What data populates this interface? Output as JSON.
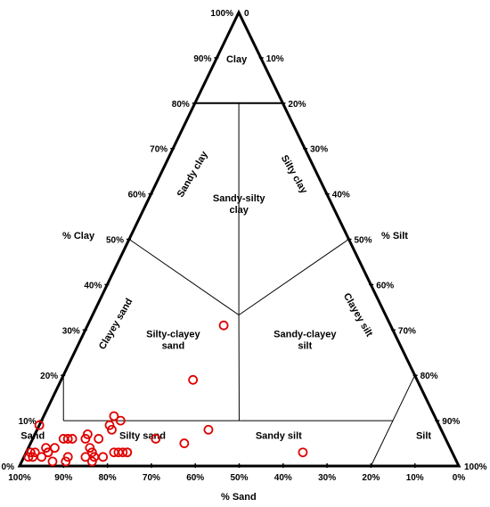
{
  "chart_data": {
    "type": "scatter",
    "subtype": "ternary",
    "axes": {
      "clay": {
        "title": "% Clay",
        "ticks": [
          {
            "v": 0,
            "label": "0%"
          },
          {
            "v": 10,
            "label": "10%"
          },
          {
            "v": 20,
            "label": "20%"
          },
          {
            "v": 30,
            "label": "30%"
          },
          {
            "v": 40,
            "label": "40%"
          },
          {
            "v": 50,
            "label": "50%"
          },
          {
            "v": 60,
            "label": "60%"
          },
          {
            "v": 70,
            "label": "70%"
          },
          {
            "v": 80,
            "label": "80%"
          },
          {
            "v": 90,
            "label": "90%"
          },
          {
            "v": 100,
            "label": "100%"
          }
        ]
      },
      "silt": {
        "title": "% Silt",
        "ticks": [
          {
            "v": 0,
            "label": "0"
          },
          {
            "v": 10,
            "label": "10%"
          },
          {
            "v": 20,
            "label": "20%"
          },
          {
            "v": 30,
            "label": "30%"
          },
          {
            "v": 40,
            "label": "40%"
          },
          {
            "v": 50,
            "label": "50%"
          },
          {
            "v": 60,
            "label": "60%"
          },
          {
            "v": 70,
            "label": "70%"
          },
          {
            "v": 80,
            "label": "80%"
          },
          {
            "v": 90,
            "label": "90%"
          },
          {
            "v": 100,
            "label": "100%"
          }
        ]
      },
      "sand": {
        "title": "% Sand",
        "ticks": [
          {
            "v": 100,
            "label": "100%"
          },
          {
            "v": 90,
            "label": "90%"
          },
          {
            "v": 80,
            "label": "80%"
          },
          {
            "v": 70,
            "label": "70%"
          },
          {
            "v": 60,
            "label": "60%"
          },
          {
            "v": 50,
            "label": "50%"
          },
          {
            "v": 40,
            "label": "40%"
          },
          {
            "v": 30,
            "label": "30%"
          },
          {
            "v": 20,
            "label": "20%"
          },
          {
            "v": 10,
            "label": "10%"
          },
          {
            "v": 0,
            "label": "0%"
          }
        ]
      }
    },
    "regions": [
      {
        "name": "Clay",
        "clay": 89,
        "silt": 5
      },
      {
        "name": "Sandy clay",
        "clay": 64,
        "silt": 8,
        "rotate": -60
      },
      {
        "name": "Silty clay",
        "clay": 64,
        "silt": 30,
        "rotate": 60
      },
      {
        "name": "Sandy-silty clay",
        "clay": 58,
        "silt": 21,
        "lines": [
          "Sandy-silty",
          "clay"
        ]
      },
      {
        "name": "Clayey sand",
        "clay": 31,
        "silt": 7,
        "rotate": -60
      },
      {
        "name": "Clayey silt",
        "clay": 33,
        "silt": 60,
        "rotate": 60
      },
      {
        "name": "Silty-clayey sand",
        "clay": 28,
        "silt": 21,
        "lines": [
          "Silty-clayey",
          "sand"
        ]
      },
      {
        "name": "Sandy-clayey silt",
        "clay": 28,
        "silt": 51,
        "lines": [
          "Sandy-clayey",
          "silt"
        ]
      },
      {
        "name": "Sand",
        "clay": 6,
        "silt": 0
      },
      {
        "name": "Silty sand",
        "clay": 6,
        "silt": 25
      },
      {
        "name": "Sandy silt",
        "clay": 6,
        "silt": 56
      },
      {
        "name": "Silt",
        "clay": 6,
        "silt": 89
      }
    ],
    "boundaries": [
      {
        "from": {
          "clay": 80,
          "silt": 0
        },
        "to": {
          "clay": 80,
          "silt": 20
        }
      },
      {
        "from": {
          "clay": 80,
          "silt": 10
        },
        "to": {
          "clay": 33.3,
          "silt": 33.3
        }
      },
      {
        "from": {
          "clay": 50,
          "silt": 0
        },
        "to": {
          "clay": 33.3,
          "silt": 33.3
        }
      },
      {
        "from": {
          "clay": 50,
          "silt": 50
        },
        "to": {
          "clay": 33.3,
          "silt": 33.3
        }
      },
      {
        "from": {
          "clay": 33.3,
          "silt": 33.3
        },
        "to": {
          "clay": 10,
          "silt": 45
        }
      },
      {
        "from": {
          "clay": 20,
          "silt": 0
        },
        "to": {
          "clay": 10,
          "silt": 5
        }
      },
      {
        "from": {
          "clay": 10,
          "silt": 5
        },
        "to": {
          "clay": 10,
          "silt": 80
        }
      },
      {
        "from": {
          "clay": 20,
          "silt": 80
        },
        "to": {
          "clay": 0,
          "silt": 80
        }
      }
    ],
    "points": [
      {
        "clay": 9,
        "silt": 0
      },
      {
        "clay": 3,
        "silt": 1
      },
      {
        "clay": 2,
        "silt": 1
      },
      {
        "clay": 3,
        "silt": 2
      },
      {
        "clay": 2,
        "silt": 2
      },
      {
        "clay": 2,
        "silt": 4
      },
      {
        "clay": 4,
        "silt": 4
      },
      {
        "clay": 3,
        "silt": 5
      },
      {
        "clay": 4,
        "silt": 6
      },
      {
        "clay": 3,
        "silt": 5
      },
      {
        "clay": 1,
        "silt": 7
      },
      {
        "clay": 6,
        "silt": 7
      },
      {
        "clay": 6,
        "silt": 8
      },
      {
        "clay": 6,
        "silt": 9
      },
      {
        "clay": 7,
        "silt": 12
      },
      {
        "clay": 6,
        "silt": 12
      },
      {
        "clay": 2,
        "silt": 10
      },
      {
        "clay": 1,
        "silt": 10
      },
      {
        "clay": 4,
        "silt": 14
      },
      {
        "clay": 2,
        "silt": 14
      },
      {
        "clay": 6,
        "silt": 15
      },
      {
        "clay": 3,
        "silt": 15
      },
      {
        "clay": 2,
        "silt": 16
      },
      {
        "clay": 1,
        "silt": 16
      },
      {
        "clay": 2,
        "silt": 18
      },
      {
        "clay": 3,
        "silt": 20
      },
      {
        "clay": 3,
        "silt": 21
      },
      {
        "clay": 3,
        "silt": 22
      },
      {
        "clay": 3,
        "silt": 23
      },
      {
        "clay": 3,
        "silt": 23
      },
      {
        "clay": 9,
        "silt": 16
      },
      {
        "clay": 11,
        "silt": 16
      },
      {
        "clay": 10,
        "silt": 18
      },
      {
        "clay": 8,
        "silt": 17
      },
      {
        "clay": 6,
        "silt": 28
      },
      {
        "clay": 5,
        "silt": 35
      },
      {
        "clay": 8,
        "silt": 39
      },
      {
        "clay": 19,
        "silt": 30
      },
      {
        "clay": 31,
        "silt": 31
      },
      {
        "clay": 3,
        "silt": 63
      }
    ],
    "colors": {
      "marker": "#e00000",
      "lines": "#000000",
      "background": "#ffffff"
    }
  }
}
